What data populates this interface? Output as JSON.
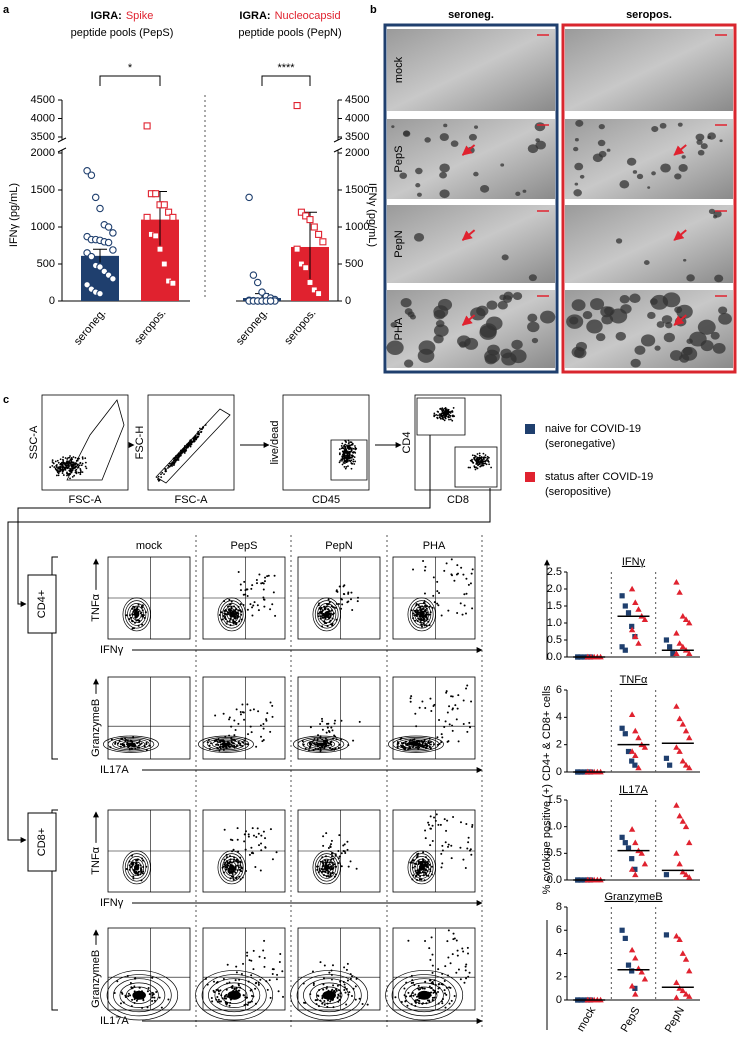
{
  "panel_labels": [
    "a",
    "b",
    "c"
  ],
  "chart_data": [
    {
      "type": "bar",
      "title": "IGRA:",
      "title_highlight": "Spike",
      "subtitle": "peptide pools (PepS)",
      "y_label": "IFNγ (pg/mL)",
      "categories": [
        "seroneg.",
        "seropos."
      ],
      "values": [
        610,
        1100
      ],
      "errors": [
        90,
        380
      ],
      "colors": [
        "#1f3f6e",
        "#e0222f"
      ],
      "markers": [
        "circle",
        "square"
      ],
      "points": [
        [
          1760,
          1700,
          1400,
          1250,
          1030,
          1000,
          920,
          870,
          830,
          830,
          820,
          800,
          790,
          690,
          650,
          600,
          480,
          460,
          400,
          350,
          300,
          220,
          160,
          120,
          100
        ],
        [
          3800,
          1450,
          1450,
          1300,
          1300,
          1200,
          1130,
          1130,
          900,
          880,
          700,
          500,
          270,
          240
        ]
      ],
      "ylim": [
        0,
        4500
      ],
      "axis_break": [
        2000,
        3500
      ],
      "yticks": [
        0,
        500,
        1000,
        1500,
        2000,
        3500,
        4000,
        4500
      ],
      "y_axis_side": "left",
      "significance": "*"
    },
    {
      "type": "bar",
      "title": "IGRA:",
      "title_highlight": "Nucleocapsid",
      "subtitle": "peptide pools (PepN)",
      "y_label": "IFNγ (pg/mL)",
      "categories": [
        "seroneg.",
        "seropos."
      ],
      "values": [
        40,
        730
      ],
      "errors": [
        60,
        470
      ],
      "colors": [
        "#1f3f6e",
        "#e0222f"
      ],
      "markers": [
        "circle",
        "square"
      ],
      "points": [
        [
          1400,
          350,
          250,
          120,
          60,
          40,
          20,
          10,
          5,
          0,
          0,
          0,
          0,
          0,
          0,
          0,
          0,
          0,
          0,
          0
        ],
        [
          4350,
          1200,
          1150,
          1100,
          1000,
          900,
          800,
          700,
          500,
          450,
          250,
          150,
          100
        ]
      ],
      "ylim": [
        0,
        4500
      ],
      "axis_break": [
        2000,
        3500
      ],
      "yticks": [
        0,
        500,
        1000,
        1500,
        2000,
        3500,
        4000,
        4500
      ],
      "y_axis_side": "right",
      "significance": "****"
    },
    {
      "type": "dot",
      "title": "IFNγ",
      "ylim": [
        0,
        2.5
      ],
      "yticks": [
        {
          "value": 0,
          "label": "0.0"
        },
        0.5,
        {
          "value": 1,
          "label": "1.0"
        },
        1.5,
        {
          "value": 2,
          "label": "2.0"
        },
        2.5
      ],
      "series": [
        {
          "color": "#1f3f6e",
          "marker": "square",
          "values": [
            [
              0,
              0,
              0,
              0,
              0,
              0
            ],
            [
              1.8,
              1.5,
              1.3,
              0.9,
              0.6,
              0.3,
              0.2
            ],
            [
              0.5,
              0.3,
              0.1
            ]
          ]
        },
        {
          "color": "#e0222f",
          "marker": "triangle",
          "values": [
            [
              0,
              0,
              0,
              0,
              0,
              0
            ],
            [
              2.0,
              1.6,
              1.4,
              1.2,
              1.1,
              0.8,
              0.6,
              0.4
            ],
            [
              2.2,
              1.9,
              1.2,
              1.1,
              1.0,
              0.7,
              0.4,
              0.3,
              0.2,
              0.1,
              0.1
            ]
          ]
        }
      ],
      "medians": [
        0,
        1.2,
        0.2
      ]
    },
    {
      "type": "dot",
      "title": "TNFα",
      "ylim": [
        0,
        6
      ],
      "yticks": [
        0,
        2,
        4,
        6
      ],
      "series": [
        {
          "color": "#1f3f6e",
          "marker": "square",
          "values": [
            [
              0,
              0,
              0,
              0,
              0,
              0
            ],
            [
              3.2,
              2.8,
              1.5,
              0.8,
              0.5
            ],
            [
              1.0,
              0.5
            ]
          ]
        },
        {
          "color": "#e0222f",
          "marker": "triangle",
          "values": [
            [
              0,
              0,
              0,
              0,
              0,
              0
            ],
            [
              4.2,
              3.0,
              2.5,
              2.0,
              1.8,
              1.5,
              1.2,
              0.3
            ],
            [
              4.8,
              3.9,
              3.5,
              3.0,
              2.5,
              1.8,
              1.5,
              0.8,
              0.5,
              0.3
            ]
          ]
        }
      ],
      "medians": [
        0,
        2.0,
        2.1
      ]
    },
    {
      "type": "dot",
      "title": "IL17A",
      "ylim": [
        0,
        1.5
      ],
      "yticks": [
        {
          "value": 0,
          "label": "0.0"
        },
        0.5,
        {
          "value": 1,
          "label": "1.0"
        },
        1.5
      ],
      "series": [
        {
          "color": "#1f3f6e",
          "marker": "square",
          "values": [
            [
              0,
              0,
              0,
              0,
              0,
              0
            ],
            [
              0.8,
              0.7,
              0.6,
              0.4,
              0.2
            ],
            [
              0.1
            ]
          ]
        },
        {
          "color": "#e0222f",
          "marker": "triangle",
          "values": [
            [
              0,
              0,
              0,
              0,
              0,
              0
            ],
            [
              0.95,
              0.7,
              0.55,
              0.5,
              0.3,
              0.2,
              0.1
            ],
            [
              1.4,
              1.2,
              1.1,
              1.0,
              0.7,
              0.5,
              0.3,
              0.15,
              0.1,
              0.05
            ]
          ]
        }
      ],
      "medians": [
        0,
        0.55,
        0.18
      ]
    },
    {
      "type": "dot",
      "title": "GranzymeB",
      "ylim": [
        0,
        8
      ],
      "yticks": [
        0,
        2,
        4,
        6,
        8
      ],
      "categories": [
        "mock",
        "PepS",
        "PepN"
      ],
      "series": [
        {
          "color": "#1f3f6e",
          "marker": "square",
          "values": [
            [
              0,
              0,
              0,
              0,
              0,
              0
            ],
            [
              6.0,
              5.3,
              3.0,
              2.5,
              1.0
            ],
            [
              5.6
            ]
          ]
        },
        {
          "color": "#e0222f",
          "marker": "triangle",
          "values": [
            [
              0,
              0,
              0,
              0,
              0,
              0
            ],
            [
              4.3,
              3.6,
              2.7,
              2.4,
              1.8,
              1.2,
              0.5
            ],
            [
              5.5,
              5.2,
              4.0,
              3.5,
              2.5,
              1.5,
              1.0,
              0.8,
              0.5,
              0.3,
              0.2
            ]
          ]
        }
      ],
      "medians": [
        0,
        2.6,
        1.1
      ]
    }
  ],
  "dot_y_label": "% cytokine positive (+) CD4+ & CD8+ cells",
  "images": {
    "columns": [
      "seroneg.",
      "seropos."
    ],
    "rows": [
      "mock",
      "PepS",
      "PepN",
      "PHA"
    ]
  },
  "gating": [
    {
      "x": "FSC-A",
      "y": "SSC-A"
    },
    {
      "x": "FSC-A",
      "y": "FSC-H"
    },
    {
      "x": "CD45",
      "y": "live/dead"
    },
    {
      "x": "CD8",
      "y": "CD4"
    }
  ],
  "legend": [
    {
      "color": "#1f3f6e",
      "lines": [
        "naive for COVID-19",
        "(seronegative)"
      ]
    },
    {
      "color": "#e0222f",
      "lines": [
        "status after COVID-19",
        "(seropositive)"
      ]
    }
  ],
  "flow": {
    "columns": [
      "mock",
      "PepS",
      "PepN",
      "PHA"
    ],
    "groups": [
      {
        "label": "CD4+",
        "rows": [
          {
            "x": "IFNγ",
            "y": "TNFα"
          },
          {
            "x": "IL17A",
            "y": "GranzymeB"
          }
        ]
      },
      {
        "label": "CD8+",
        "rows": [
          {
            "x": "IFNγ",
            "y": "TNFα"
          },
          {
            "x": "IL17A",
            "y": "GranzymeB"
          }
        ]
      }
    ]
  }
}
